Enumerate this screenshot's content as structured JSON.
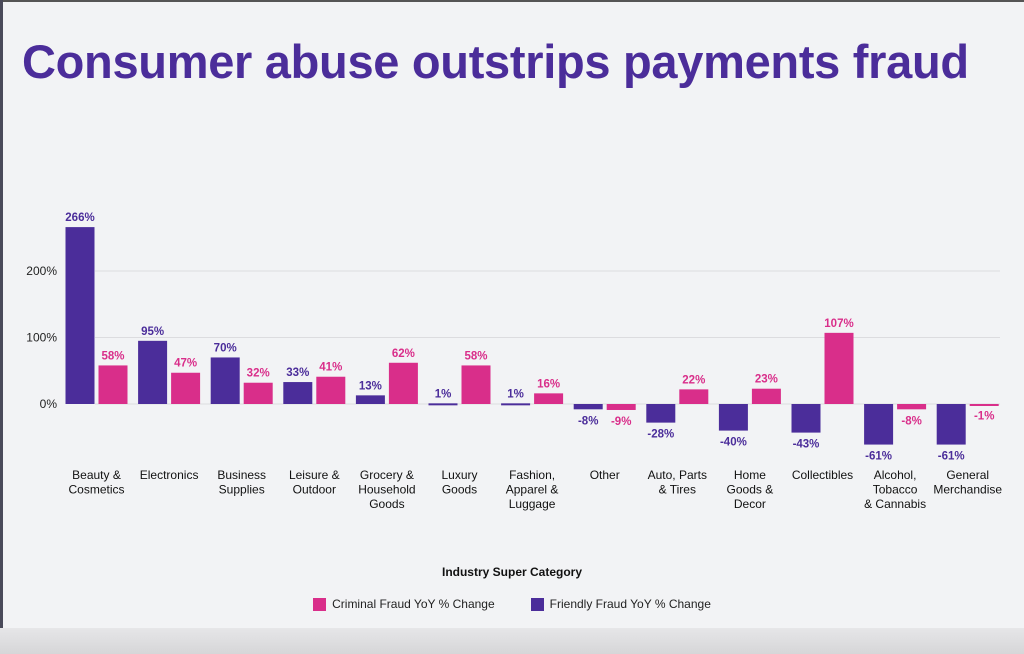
{
  "title": "Consumer abuse outstrips payments fraud",
  "chart_data": {
    "type": "bar",
    "title": "Consumer abuse outstrips payments fraud",
    "xlabel": "Industry Super Category",
    "ylabel": "",
    "ylim": [
      -70,
      280
    ],
    "yticks": [
      0,
      100,
      200
    ],
    "ytick_labels": [
      "0%",
      "100%",
      "200%"
    ],
    "grid": true,
    "legend_position": "bottom",
    "categories": [
      [
        "Beauty &",
        "Cosmetics"
      ],
      [
        "Electronics"
      ],
      [
        "Business",
        "Supplies"
      ],
      [
        "Leisure &",
        "Outdoor"
      ],
      [
        "Grocery &",
        "Household",
        "Goods"
      ],
      [
        "Luxury",
        "Goods"
      ],
      [
        "Fashion,",
        "Apparel &",
        "Luggage"
      ],
      [
        "Other"
      ],
      [
        "Auto, Parts",
        "& Tires"
      ],
      [
        "Home",
        "Goods &",
        "Decor"
      ],
      [
        "Collectibles"
      ],
      [
        "Alcohol,",
        "Tobacco",
        "& Cannabis"
      ],
      [
        "General",
        "Merchandise"
      ]
    ],
    "series": [
      {
        "name": "Friendly Fraud YoY % Change",
        "color": "#4b2d9a",
        "values": [
          266,
          95,
          70,
          33,
          13,
          1,
          1,
          -8,
          -28,
          -40,
          -43,
          -61,
          -61
        ]
      },
      {
        "name": "Criminal Fraud YoY % Change",
        "color": "#d92e8a",
        "values": [
          58,
          47,
          32,
          41,
          62,
          58,
          16,
          -9,
          22,
          23,
          107,
          -8,
          -1
        ]
      }
    ],
    "legend_order": [
      1,
      0
    ]
  }
}
